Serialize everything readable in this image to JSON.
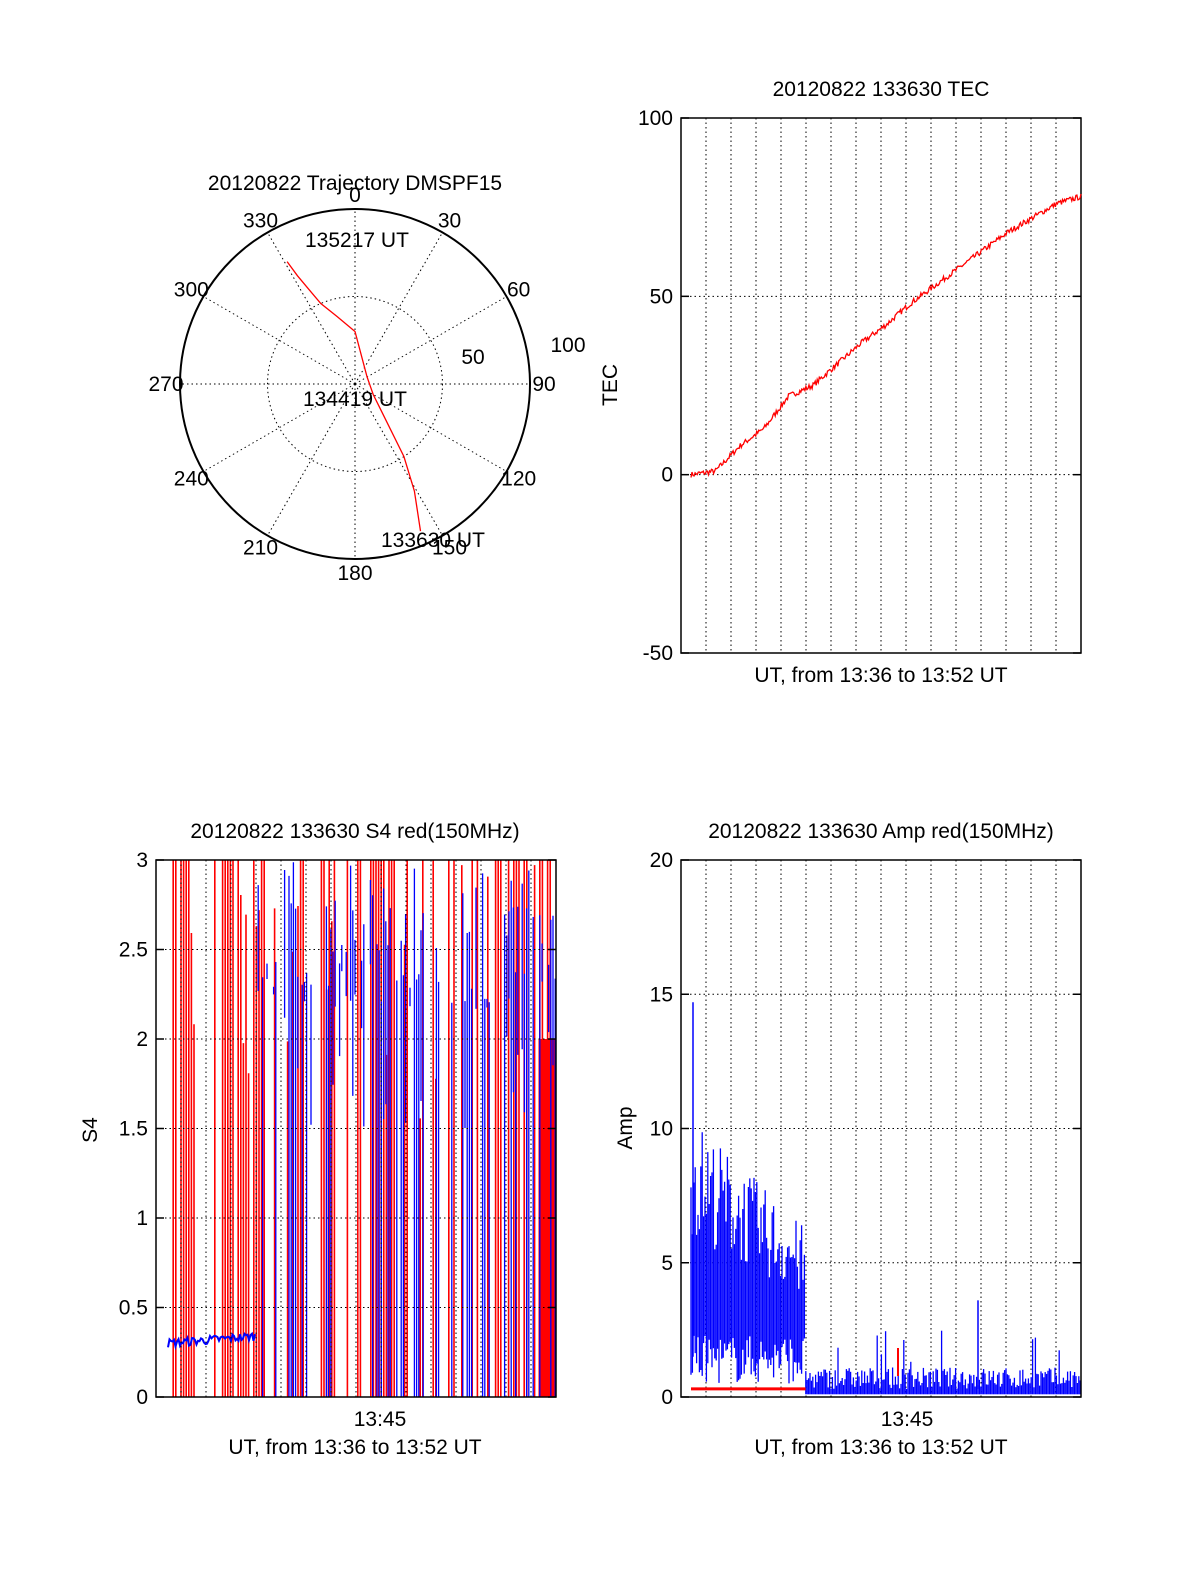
{
  "colors": {
    "red": "#ff0000",
    "blue": "#0000ff",
    "axis": "#000000",
    "grid": "#000000",
    "background": "#ffffff"
  },
  "chart_data": [
    {
      "id": "trajectory",
      "type": "scatter",
      "subtype": "polar",
      "title": "20120822 Trajectory DMSPF15",
      "azimuth_labels": [
        "0",
        "30",
        "60",
        "90",
        "120",
        "150",
        "180",
        "210",
        "240",
        "270",
        "300",
        "330"
      ],
      "radial_labels": [
        "50",
        "100"
      ],
      "rlim": [
        0,
        100
      ],
      "grid": true,
      "track": {
        "color": "red",
        "azimuth_deg": [
          331,
          332,
          334,
          337,
          345,
          0,
          60,
          120,
          146,
          151,
          156
        ],
        "zenith_deg": [
          80,
          70,
          60,
          50,
          40,
          30,
          8,
          12,
          50,
          70,
          92
        ]
      },
      "annotations": [
        "135217 UT",
        "134419 UT",
        "133630 UT"
      ]
    },
    {
      "id": "tec",
      "type": "line",
      "title": "20120822 133630 TEC",
      "xlabel": "UT, from 13:36 to 13:52 UT",
      "ylabel": "TEC",
      "xlim": [
        "13:36",
        "13:52"
      ],
      "ylim": [
        -50,
        100
      ],
      "yticks": [
        "100",
        "50",
        "0",
        "-50"
      ],
      "xticks": [],
      "grid": true,
      "series": [
        {
          "color": "red",
          "x": [
            "13:36",
            "13:37",
            "13:38",
            "13:39",
            "13:40",
            "13:41",
            "13:42",
            "13:43",
            "13:44",
            "13:45",
            "13:46",
            "13:47",
            "13:48",
            "13:49",
            "13:50",
            "13:51",
            "13:52"
          ],
          "values": [
            0,
            1,
            8,
            13,
            22,
            25,
            31,
            37,
            42,
            48,
            53,
            58,
            63,
            68,
            72,
            76,
            78
          ]
        }
      ]
    },
    {
      "id": "s4",
      "type": "line",
      "title": "20120822 133630 S4 red(150MHz)",
      "xlabel": "UT, from 13:36 to 13:52 UT",
      "ylabel": "S4",
      "xlim": [
        "13:36",
        "13:52"
      ],
      "ylim": [
        0,
        3
      ],
      "yticks": [
        "3",
        "2.5",
        "2",
        "1.5",
        "1",
        "0.5",
        "0"
      ],
      "xticks": [
        "13:45"
      ],
      "grid": true,
      "series": [
        {
          "color": "red",
          "x": [
            "13:36",
            "13:52"
          ],
          "values_range": [
            0,
            3
          ]
        },
        {
          "color": "blue",
          "x": [
            "13:36",
            "13:37",
            "13:38",
            "13:39",
            "13:40",
            "13:44",
            "13:48",
            "13:52"
          ],
          "values": [
            0.3,
            0.31,
            0.32,
            0.33,
            0.34,
            2.8,
            2.7,
            2.8
          ]
        }
      ]
    },
    {
      "id": "amp",
      "type": "line",
      "title": "20120822 133630 Amp red(150MHz)",
      "xlabel": "UT, from 13:36 to 13:52 UT",
      "ylabel": "Amp",
      "xlim": [
        "13:36",
        "13:52"
      ],
      "ylim": [
        0,
        20
      ],
      "yticks": [
        "20",
        "15",
        "10",
        "5",
        "0"
      ],
      "xticks": [
        "13:45"
      ],
      "grid": true,
      "series": [
        {
          "color": "blue",
          "x": [
            "13:36",
            "13:37",
            "13:38",
            "13:39",
            "13:40",
            "13:41",
            "13:44",
            "13:48",
            "13:52"
          ],
          "values": [
            10,
            9,
            8,
            7,
            6,
            0.6,
            0.7,
            0.7,
            0.8
          ]
        },
        {
          "color": "red",
          "x": [
            "13:36",
            "13:38",
            "13:40"
          ],
          "values": [
            0.3,
            0.3,
            0.3
          ]
        }
      ]
    }
  ]
}
